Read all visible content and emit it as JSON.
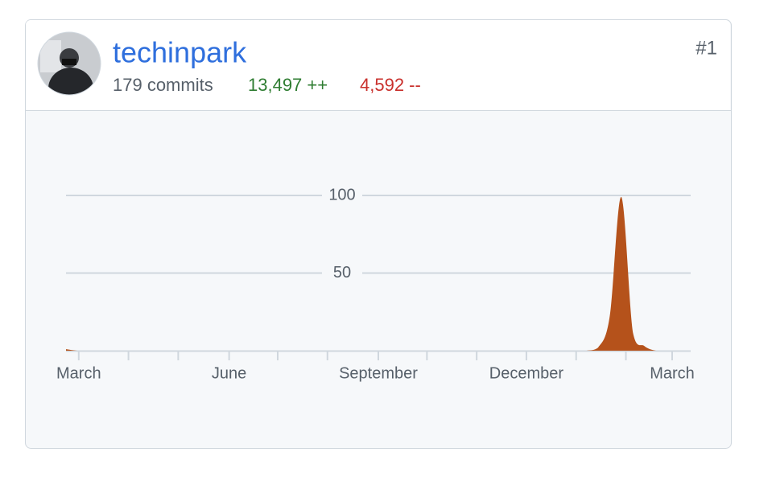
{
  "header": {
    "username": "techinpark",
    "commits": "179 commits",
    "additions": "13,497 ++",
    "deletions": "4,592 --",
    "rank": "#1"
  },
  "chart_data": {
    "type": "area",
    "color": "#b5521b",
    "x": [
      0,
      1,
      2,
      3,
      4,
      5,
      6,
      7,
      8,
      9,
      10,
      11,
      12,
      13,
      14,
      15,
      16,
      17,
      18,
      19,
      20,
      21,
      22,
      23,
      24,
      25,
      26,
      27,
      28,
      29,
      30,
      31,
      32,
      33,
      34,
      35,
      36,
      37,
      38,
      39,
      40,
      41,
      42,
      43,
      44,
      45,
      46,
      47,
      48,
      49,
      50,
      51,
      52,
      53,
      54
    ],
    "values": [
      1,
      0,
      0,
      0,
      0,
      0,
      0,
      0,
      0,
      0,
      0,
      0,
      0,
      0,
      0,
      0,
      0,
      0,
      0,
      0,
      0,
      0,
      0,
      0,
      0,
      0,
      0,
      0,
      0,
      0,
      0,
      0,
      0,
      0,
      0,
      0,
      0,
      0,
      0,
      0,
      0,
      0,
      0,
      0,
      0,
      0,
      2,
      22,
      99,
      12,
      3,
      0,
      0,
      0,
      0
    ],
    "xlim": [
      0,
      54
    ],
    "xticks": [
      {
        "value": 1.1,
        "label": "March"
      },
      {
        "value": 5.4,
        "label": null
      },
      {
        "value": 9.7,
        "label": null
      },
      {
        "value": 14.1,
        "label": "June"
      },
      {
        "value": 18.3,
        "label": null
      },
      {
        "value": 22.6,
        "label": null
      },
      {
        "value": 27,
        "label": "September"
      },
      {
        "value": 31.2,
        "label": null
      },
      {
        "value": 35.5,
        "label": null
      },
      {
        "value": 39.8,
        "label": "December"
      },
      {
        "value": 44.1,
        "label": null
      },
      {
        "value": 48.4,
        "label": null
      },
      {
        "value": 52.4,
        "label": "March"
      }
    ],
    "ylim": [
      0,
      100
    ],
    "yticks": [
      50,
      100
    ],
    "grid": true
  }
}
